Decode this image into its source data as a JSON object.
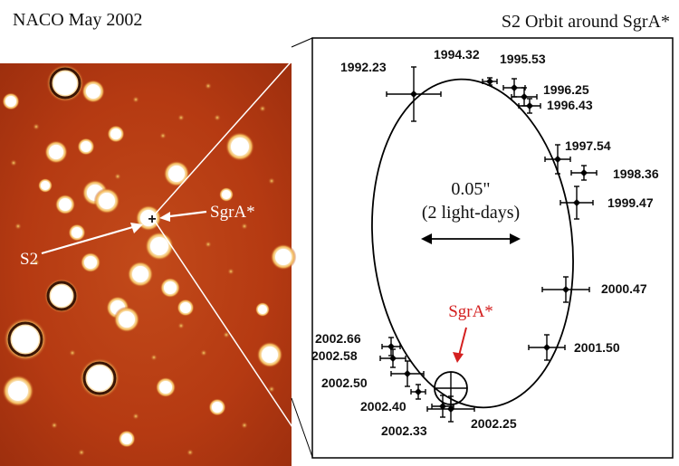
{
  "headers": {
    "left": "NACO May 2002",
    "right": "S2 Orbit around SgrA*"
  },
  "image_panel": {
    "sgra_label": "SgrA*",
    "s2_label": "S2",
    "center_marker": "+"
  },
  "orbit_panel": {
    "scale_value": "0.05\"",
    "scale_note": "(2 light-days)",
    "sgra_label": "SgrA*",
    "sgra_color": "#d42020",
    "epochs": [
      "1992.23",
      "1994.32",
      "1995.53",
      "1996.25",
      "1996.43",
      "1997.54",
      "1998.36",
      "1999.47",
      "2000.47",
      "2001.50",
      "2002.25",
      "2002.33",
      "2002.40",
      "2002.50",
      "2002.58",
      "2002.66"
    ]
  },
  "colors": {
    "image_background": "#b53a12",
    "star": "#ffffff",
    "orbit_line": "#000000"
  }
}
